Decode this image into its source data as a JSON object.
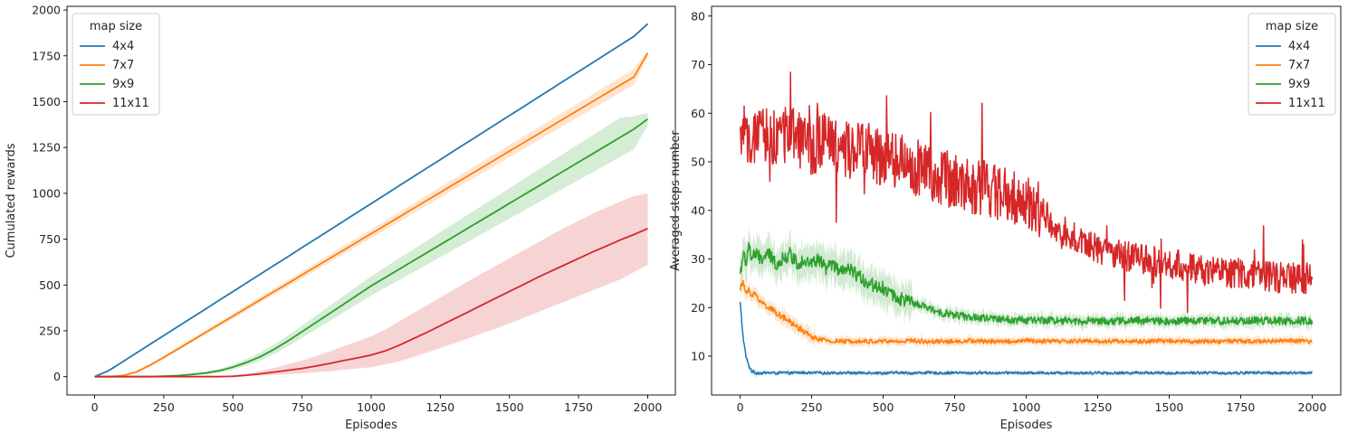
{
  "chart_data": [
    {
      "type": "line",
      "xlabel": "Episodes",
      "ylabel": "Cumulated rewards",
      "xlim": [
        -100,
        2100
      ],
      "ylim": [
        -100,
        2020
      ],
      "xticks": [
        "0",
        "250",
        "500",
        "750",
        "1000",
        "1250",
        "1500",
        "1750",
        "2000"
      ],
      "yticks": [
        "0",
        "250",
        "500",
        "750",
        "1000",
        "1250",
        "1500",
        "1750",
        "2000"
      ],
      "grid": false,
      "legend": {
        "title": "map size",
        "placement": "top-left"
      },
      "x": [
        0,
        50,
        100,
        150,
        200,
        250,
        300,
        350,
        400,
        450,
        500,
        550,
        600,
        650,
        700,
        750,
        800,
        850,
        900,
        950,
        1000,
        1050,
        1100,
        1150,
        1200,
        1250,
        1300,
        1350,
        1400,
        1450,
        1500,
        1550,
        1600,
        1650,
        1700,
        1750,
        1800,
        1850,
        1900,
        1950,
        2000
      ],
      "series": [
        {
          "name": "4x4",
          "color": "#1f77b4",
          "values": [
            0,
            32,
            80,
            128,
            176,
            224,
            272,
            320,
            368,
            416,
            464,
            512,
            560,
            608,
            656,
            704,
            752,
            800,
            848,
            896,
            944,
            992,
            1040,
            1088,
            1136,
            1184,
            1232,
            1280,
            1328,
            1376,
            1424,
            1472,
            1520,
            1568,
            1616,
            1664,
            1712,
            1760,
            1808,
            1856,
            1925
          ],
          "lower": [
            0,
            30,
            78,
            126,
            174,
            222,
            270,
            318,
            366,
            414,
            462,
            510,
            558,
            606,
            654,
            702,
            750,
            798,
            846,
            894,
            942,
            990,
            1038,
            1086,
            1134,
            1182,
            1230,
            1278,
            1326,
            1374,
            1422,
            1470,
            1518,
            1566,
            1614,
            1662,
            1710,
            1758,
            1806,
            1854,
            1922
          ],
          "upper": [
            0,
            34,
            82,
            130,
            178,
            226,
            274,
            322,
            370,
            418,
            466,
            514,
            562,
            610,
            658,
            706,
            754,
            802,
            850,
            898,
            946,
            994,
            1042,
            1090,
            1138,
            1186,
            1234,
            1282,
            1330,
            1378,
            1426,
            1474,
            1522,
            1570,
            1618,
            1666,
            1714,
            1762,
            1810,
            1858,
            1928
          ]
        },
        {
          "name": "7x7",
          "color": "#ff7f0e",
          "values": [
            0,
            0,
            5,
            25,
            62,
            105,
            150,
            195,
            240,
            285,
            330,
            375,
            420,
            465,
            510,
            555,
            600,
            645,
            690,
            735,
            780,
            825,
            870,
            915,
            960,
            1005,
            1050,
            1095,
            1140,
            1185,
            1230,
            1275,
            1320,
            1365,
            1410,
            1455,
            1500,
            1545,
            1590,
            1635,
            1765
          ],
          "lower": [
            0,
            0,
            3,
            20,
            54,
            96,
            140,
            184,
            228,
            272,
            316,
            360,
            404,
            448,
            492,
            536,
            580,
            624,
            668,
            712,
            756,
            800,
            844,
            888,
            932,
            976,
            1020,
            1064,
            1108,
            1152,
            1196,
            1240,
            1284,
            1328,
            1372,
            1416,
            1460,
            1504,
            1548,
            1592,
            1748
          ],
          "upper": [
            0,
            0,
            7,
            30,
            70,
            114,
            160,
            206,
            252,
            298,
            344,
            390,
            436,
            482,
            528,
            574,
            620,
            666,
            712,
            758,
            804,
            850,
            896,
            942,
            988,
            1034,
            1080,
            1126,
            1172,
            1218,
            1264,
            1310,
            1356,
            1402,
            1448,
            1494,
            1540,
            1586,
            1632,
            1678,
            1780
          ]
        },
        {
          "name": "9x9",
          "color": "#2ca02c",
          "values": [
            0,
            0,
            0,
            0,
            0,
            3,
            6,
            12,
            20,
            32,
            52,
            78,
            110,
            150,
            196,
            245,
            295,
            345,
            395,
            445,
            495,
            540,
            585,
            630,
            675,
            720,
            765,
            810,
            855,
            900,
            945,
            990,
            1035,
            1080,
            1125,
            1170,
            1215,
            1260,
            1305,
            1350,
            1405
          ],
          "lower": [
            0,
            0,
            0,
            0,
            0,
            1,
            3,
            7,
            13,
            22,
            38,
            60,
            88,
            124,
            166,
            212,
            258,
            304,
            350,
            396,
            442,
            484,
            526,
            568,
            610,
            652,
            694,
            736,
            778,
            820,
            862,
            904,
            946,
            988,
            1030,
            1072,
            1114,
            1156,
            1198,
            1240,
            1370
          ],
          "upper": [
            0,
            0,
            0,
            0,
            0,
            5,
            9,
            17,
            27,
            42,
            66,
            96,
            132,
            176,
            226,
            278,
            332,
            386,
            440,
            494,
            548,
            596,
            644,
            692,
            740,
            788,
            836,
            884,
            932,
            980,
            1028,
            1076,
            1124,
            1172,
            1220,
            1268,
            1316,
            1364,
            1412,
            1420,
            1440
          ]
        },
        {
          "name": "11x11",
          "color": "#d62728",
          "values": [
            0,
            0,
            0,
            0,
            0,
            0,
            0,
            0,
            0,
            0,
            2,
            8,
            16,
            25,
            35,
            45,
            58,
            72,
            88,
            102,
            118,
            140,
            170,
            205,
            240,
            278,
            315,
            352,
            390,
            428,
            465,
            502,
            540,
            575,
            610,
            645,
            680,
            712,
            745,
            775,
            808
          ],
          "lower": [
            0,
            0,
            0,
            0,
            0,
            0,
            0,
            0,
            0,
            0,
            0,
            2,
            6,
            10,
            14,
            18,
            24,
            30,
            38,
            45,
            52,
            66,
            84,
            106,
            130,
            156,
            182,
            208,
            236,
            262,
            290,
            320,
            350,
            380,
            410,
            440,
            470,
            500,
            530,
            570,
            610
          ],
          "upper": [
            0,
            0,
            0,
            0,
            0,
            0,
            0,
            0,
            0,
            0,
            6,
            16,
            30,
            48,
            68,
            88,
            112,
            138,
            166,
            192,
            220,
            256,
            300,
            344,
            388,
            432,
            476,
            520,
            562,
            604,
            646,
            688,
            730,
            772,
            812,
            850,
            888,
            922,
            955,
            985,
            1000
          ]
        }
      ]
    },
    {
      "type": "line",
      "xlabel": "Episodes",
      "ylabel": "Averaged steps number",
      "xlim": [
        -100,
        2100
      ],
      "ylim": [
        2,
        82
      ],
      "xticks": [
        "0",
        "250",
        "500",
        "750",
        "1000",
        "1250",
        "1500",
        "1750",
        "2000"
      ],
      "yticks": [
        "10",
        "20",
        "30",
        "40",
        "50",
        "60",
        "70",
        "80"
      ],
      "grid": false,
      "legend": {
        "title": "map size",
        "placement": "top-right"
      },
      "x": [
        0,
        10,
        20,
        30,
        40,
        50,
        75,
        100,
        125,
        150,
        175,
        200,
        225,
        250,
        275,
        300,
        325,
        350,
        375,
        400,
        450,
        500,
        550,
        600,
        650,
        700,
        750,
        800,
        850,
        900,
        950,
        1000,
        1050,
        1100,
        1150,
        1200,
        1250,
        1300,
        1400,
        1500,
        1600,
        1700,
        1800,
        1900,
        2000
      ],
      "series": [
        {
          "name": "4x4",
          "color": "#1f77b4",
          "values": [
            21,
            14,
            10,
            8,
            7,
            6.6,
            6.5,
            6.6,
            6.5,
            6.6,
            6.5,
            6.6,
            6.6,
            6.5,
            6.6,
            6.5,
            6.6,
            6.5,
            6.6,
            6.5,
            6.6,
            6.5,
            6.6,
            6.5,
            6.6,
            6.5,
            6.6,
            6.5,
            6.6,
            6.5,
            6.6,
            6.5,
            6.6,
            6.5,
            6.6,
            6.5,
            6.6,
            6.5,
            6.6,
            6.5,
            6.6,
            6.5,
            6.6,
            6.5,
            6.6
          ]
        },
        {
          "name": "7x7",
          "color": "#ff7f0e",
          "values": [
            24,
            25,
            23,
            24,
            22,
            23,
            21,
            20,
            19,
            18,
            17,
            16,
            15,
            14,
            13.5,
            13.2,
            13,
            13.1,
            13,
            13.2,
            13,
            13.1,
            13,
            13.2,
            13,
            13.1,
            13,
            13.2,
            13,
            13.1,
            13,
            13.2,
            13,
            13.1,
            13,
            13.2,
            13,
            13.1,
            13,
            13.2,
            13,
            13.1,
            13,
            13.2,
            13
          ]
        },
        {
          "name": "9x9",
          "color": "#2ca02c",
          "values": [
            27,
            31,
            29,
            33,
            30,
            31,
            30,
            31,
            29,
            30,
            31,
            29,
            30,
            29,
            30,
            28,
            29,
            27,
            28,
            27,
            25,
            24,
            22,
            21,
            20,
            19,
            18.5,
            18,
            17.8,
            17.6,
            17.5,
            17.4,
            17.3,
            17.4,
            17.3,
            17.2,
            17.3,
            17.2,
            17.3,
            17.2,
            17.3,
            17.2,
            17.3,
            17.2,
            17.3
          ]
        },
        {
          "name": "11x11",
          "color": "#d62728",
          "values": [
            53,
            58,
            52,
            55,
            56,
            54,
            55,
            56,
            54,
            55,
            57,
            54,
            55,
            53,
            54,
            55,
            53,
            54,
            52,
            53,
            52,
            51,
            50,
            49,
            48,
            47,
            46,
            45,
            45,
            44,
            43,
            42,
            40,
            37,
            35,
            33,
            32,
            31,
            30,
            29,
            28,
            27,
            27,
            26,
            26
          ]
        }
      ]
    }
  ]
}
